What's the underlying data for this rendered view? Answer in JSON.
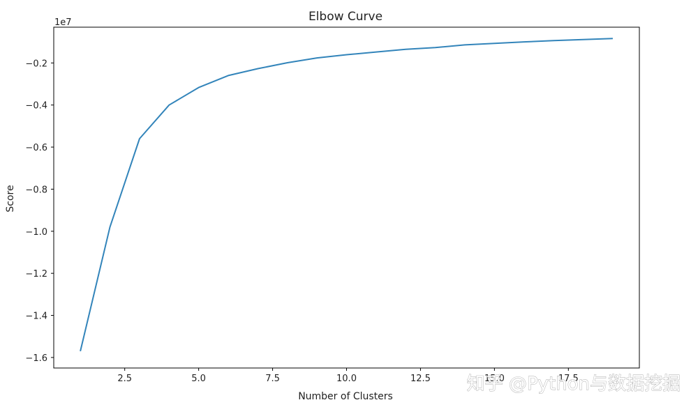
{
  "chart_data": {
    "type": "line",
    "title": "Elbow Curve",
    "xlabel": "Number of Clusters",
    "ylabel": "Score",
    "y_offset_label": "1e7",
    "xlim": [
      0.1,
      19.9
    ],
    "ylim": [
      -16500000,
      -300000
    ],
    "x_ticks": [
      2.5,
      5.0,
      7.5,
      10.0,
      12.5,
      15.0,
      17.5
    ],
    "x_tick_labels": [
      "2.5",
      "5.0",
      "7.5",
      "10.0",
      "12.5",
      "15.0",
      "17.5"
    ],
    "y_ticks": [
      -2000000,
      -4000000,
      -6000000,
      -8000000,
      -10000000,
      -12000000,
      -14000000,
      -16000000
    ],
    "y_tick_labels": [
      "−0.2",
      "−0.4",
      "−0.6",
      "−0.8",
      "−1.0",
      "−1.2",
      "−1.4",
      "−1.6"
    ],
    "grid": false,
    "series": [
      {
        "color": "#3284ba",
        "x": [
          1,
          2,
          3,
          4,
          5,
          6,
          7,
          8,
          9,
          10,
          11,
          12,
          13,
          14,
          15,
          16,
          17,
          18,
          19
        ],
        "y": [
          -15700000,
          -9800000,
          -5600000,
          -4000000,
          -3170000,
          -2600000,
          -2270000,
          -1990000,
          -1760000,
          -1610000,
          -1480000,
          -1350000,
          -1270000,
          -1140000,
          -1070000,
          -1000000,
          -940000,
          -890000,
          -840000
        ]
      }
    ]
  },
  "watermark": "知乎 @Python与数据挖掘"
}
